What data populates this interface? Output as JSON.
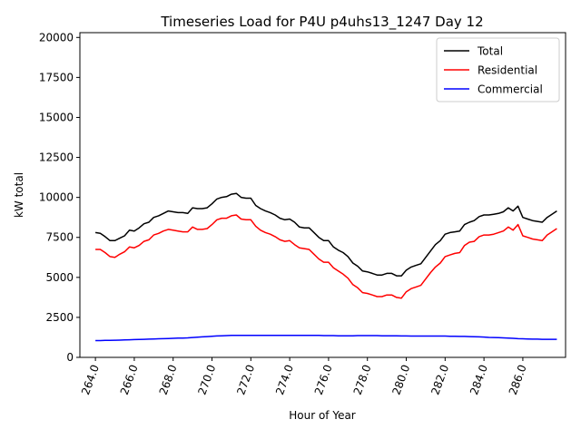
{
  "chart_data": {
    "type": "line",
    "title": "Timeseries Load for P4U p4uhs13_1247  Day 12",
    "xlabel": "Hour of Year",
    "ylabel": "kW total",
    "xlim": [
      263.2,
      288.2
    ],
    "ylim": [
      0,
      20300
    ],
    "xticks": [
      264,
      266,
      268,
      270,
      272,
      274,
      276,
      278,
      280,
      282,
      284,
      286
    ],
    "xtick_labels": [
      "264.0",
      "266.0",
      "268.0",
      "270.0",
      "272.0",
      "274.0",
      "276.0",
      "278.0",
      "280.0",
      "282.0",
      "284.0",
      "286.0"
    ],
    "yticks": [
      0,
      2500,
      5000,
      7500,
      10000,
      12500,
      15000,
      17500,
      20000
    ],
    "ytick_labels": [
      "0",
      "2500",
      "5000",
      "7500",
      "10000",
      "12500",
      "15000",
      "17500",
      "20000"
    ],
    "legend_position": "top-right",
    "grid": false,
    "x_start": 264,
    "x_step": 0.25,
    "series": [
      {
        "name": "Total",
        "color": "#000000",
        "values": [
          7800,
          7750,
          7550,
          7300,
          7300,
          7450,
          7600,
          7950,
          7900,
          8100,
          8350,
          8450,
          8750,
          8850,
          9000,
          9150,
          9100,
          9050,
          9050,
          9000,
          9350,
          9300,
          9300,
          9350,
          9600,
          9900,
          10000,
          10050,
          10200,
          10250,
          10000,
          9950,
          9950,
          9500,
          9300,
          9150,
          9050,
          8900,
          8700,
          8600,
          8650,
          8450,
          8150,
          8100,
          8100,
          7800,
          7500,
          7300,
          7300,
          6900,
          6700,
          6550,
          6300,
          5900,
          5700,
          5400,
          5350,
          5250,
          5150,
          5150,
          5250,
          5250,
          5100,
          5100,
          5450,
          5650,
          5750,
          5850,
          6250,
          6650,
          7050,
          7300,
          7700,
          7800,
          7850,
          7900,
          8300,
          8450,
          8550,
          8800,
          8900,
          8900,
          8950,
          9000,
          9100,
          9350,
          9150,
          9450,
          8750,
          8650,
          8550,
          8500,
          8450,
          8750,
          8950,
          9150
        ]
      },
      {
        "name": "Residential",
        "color": "#ff0000",
        "values": [
          6750,
          6750,
          6550,
          6300,
          6250,
          6450,
          6600,
          6900,
          6850,
          7000,
          7250,
          7350,
          7650,
          7750,
          7900,
          8000,
          7950,
          7900,
          7850,
          7850,
          8150,
          8000,
          8000,
          8050,
          8300,
          8600,
          8700,
          8700,
          8850,
          8900,
          8650,
          8600,
          8600,
          8200,
          7950,
          7800,
          7700,
          7550,
          7350,
          7250,
          7300,
          7050,
          6850,
          6800,
          6750,
          6450,
          6150,
          5950,
          5950,
          5600,
          5400,
          5200,
          4950,
          4550,
          4350,
          4050,
          4000,
          3900,
          3800,
          3800,
          3900,
          3900,
          3750,
          3700,
          4100,
          4300,
          4400,
          4500,
          4900,
          5300,
          5650,
          5900,
          6300,
          6400,
          6500,
          6550,
          7000,
          7200,
          7250,
          7550,
          7650,
          7650,
          7700,
          7800,
          7900,
          8150,
          7950,
          8300,
          7600,
          7500,
          7400,
          7350,
          7300,
          7650,
          7850,
          8050
        ]
      },
      {
        "name": "Commercial",
        "color": "#0000ff",
        "values": [
          1050,
          1050,
          1060,
          1060,
          1070,
          1080,
          1090,
          1100,
          1110,
          1120,
          1130,
          1140,
          1150,
          1160,
          1170,
          1180,
          1190,
          1200,
          1210,
          1220,
          1240,
          1260,
          1280,
          1300,
          1320,
          1340,
          1350,
          1360,
          1370,
          1380,
          1380,
          1380,
          1380,
          1380,
          1380,
          1380,
          1380,
          1370,
          1370,
          1370,
          1370,
          1370,
          1370,
          1370,
          1370,
          1370,
          1370,
          1360,
          1360,
          1360,
          1350,
          1350,
          1350,
          1350,
          1360,
          1360,
          1360,
          1360,
          1360,
          1350,
          1350,
          1350,
          1350,
          1340,
          1340,
          1330,
          1330,
          1330,
          1330,
          1330,
          1330,
          1330,
          1330,
          1320,
          1320,
          1310,
          1310,
          1300,
          1290,
          1280,
          1270,
          1250,
          1240,
          1230,
          1220,
          1200,
          1190,
          1170,
          1160,
          1150,
          1140,
          1140,
          1130,
          1130,
          1130,
          1130
        ]
      }
    ]
  }
}
